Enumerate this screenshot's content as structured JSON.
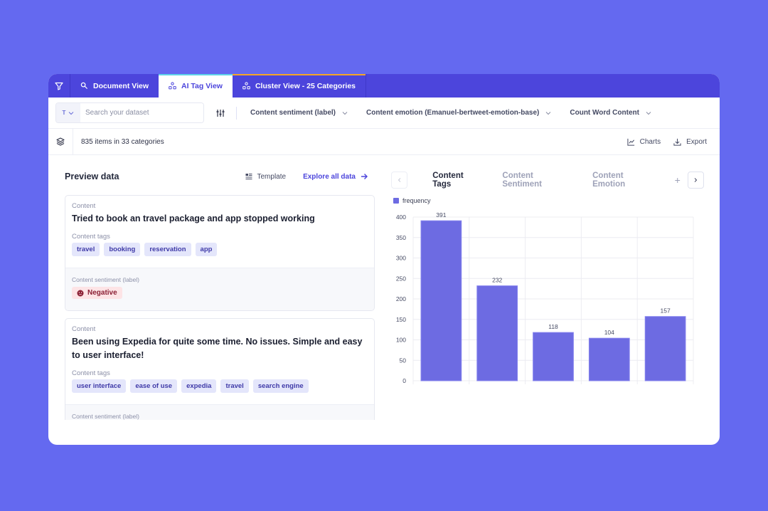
{
  "tabs": [
    {
      "label": "Document View",
      "icon": "search-icon"
    },
    {
      "label": "AI Tag View",
      "icon": "hierarchy-icon",
      "active": true
    },
    {
      "label": "Cluster View - 25 Categories",
      "icon": "hierarchy-icon"
    }
  ],
  "toolbar": {
    "search_type": "T",
    "search_placeholder": "Search your dataset",
    "search_value": "",
    "dropdowns": [
      {
        "label": "Content sentiment (label)"
      },
      {
        "label": "Content emotion (Emanuel-bertweet-emotion-base)"
      },
      {
        "label": "Count Word Content"
      }
    ]
  },
  "status": {
    "summary": "835 items in 33 categories",
    "charts_label": "Charts",
    "export_label": "Export"
  },
  "preview": {
    "title": "Preview data",
    "template_label": "Template",
    "explore_label": "Explore all data",
    "records": [
      {
        "content_label": "Content",
        "content": "Tried to book an travel package and app stopped working",
        "tags_label": "Content tags",
        "tags": [
          "travel",
          "booking",
          "reservation",
          "app"
        ],
        "sentiment_label": "Content sentiment (label)",
        "sentiment": "Negative"
      },
      {
        "content_label": "Content",
        "content": "Been using Expedia for quite some time. No issues. Simple and easy to user interface!",
        "tags_label": "Content tags",
        "tags": [
          "user interface",
          "ease of use",
          "expedia",
          "travel",
          "search engine"
        ],
        "sentiment_label": "Content sentiment (label)",
        "sentiment": ""
      }
    ]
  },
  "chart_panel": {
    "tabs": [
      "Content Tags",
      "Content Sentiment",
      "Content Emotion"
    ],
    "active_tab": "Content Tags",
    "plus_label": "+",
    "legend": "frequency",
    "bar_color": "#6d6be2"
  },
  "chart_data": {
    "type": "bar",
    "title": "",
    "categories": [
      "",
      "",
      "",
      "",
      ""
    ],
    "series": [
      {
        "name": "frequency",
        "values": [
          391,
          232,
          118,
          104,
          157
        ]
      }
    ],
    "xlabel": "",
    "ylabel": "",
    "ylim": [
      0,
      400
    ],
    "yticks": [
      0,
      50,
      100,
      150,
      200,
      250,
      300,
      350,
      400
    ],
    "grid": true,
    "legend_position": "top-left",
    "data_labels": true
  }
}
